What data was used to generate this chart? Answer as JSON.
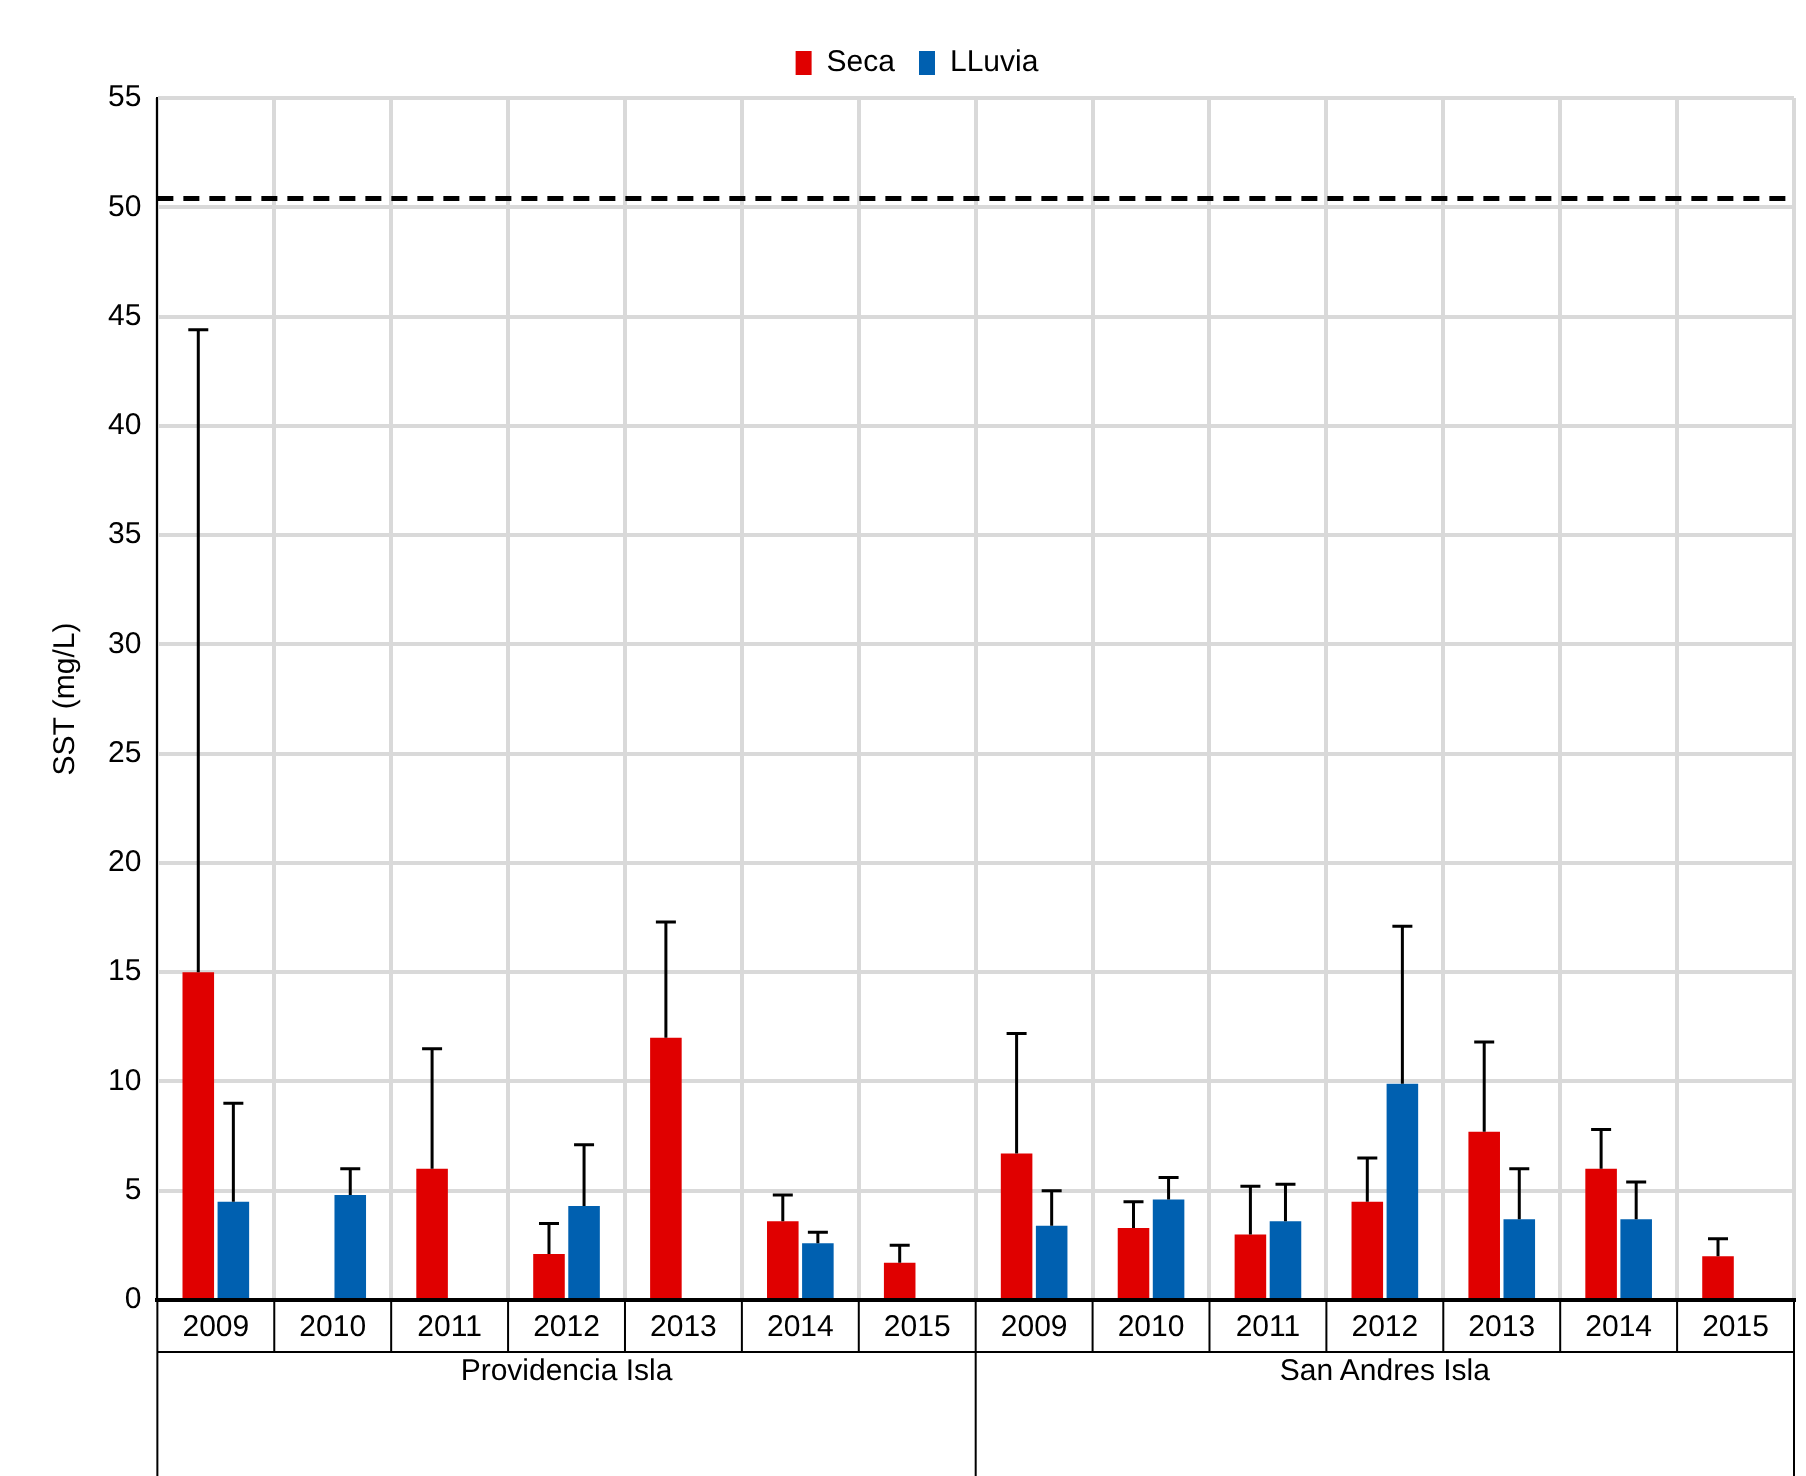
{
  "chart_data": {
    "type": "bar",
    "ylabel": "SST (mg/L)",
    "categories": [
      "2009",
      "2010",
      "2011",
      "2012",
      "2013",
      "2014",
      "2015",
      "2009",
      "2010",
      "2011",
      "2012",
      "2013",
      "2014",
      "2015"
    ],
    "annotations": [
      "Providencia Isla",
      "San Andres Isla"
    ],
    "series": [
      {
        "name": "Seca",
        "color": "#e00000",
        "values": [
          15,
          null,
          6.0,
          2.1,
          12.0,
          3.6,
          1.7,
          6.7,
          3.3,
          3.0,
          4.5,
          7.7,
          6.0,
          2.0
        ],
        "errors": [
          [
            15,
            44.4
          ],
          null,
          [
            6.0,
            11.5
          ],
          [
            2.1,
            3.5
          ],
          [
            12.0,
            17.3
          ],
          [
            3.6,
            4.8
          ],
          [
            1.7,
            2.5
          ],
          [
            6.7,
            12.2
          ],
          [
            3.3,
            4.5
          ],
          [
            3.0,
            5.2
          ],
          [
            4.5,
            6.5
          ],
          [
            7.7,
            11.8
          ],
          [
            6.0,
            7.8
          ],
          [
            2.0,
            2.8
          ]
        ]
      },
      {
        "name": "LLuvia",
        "color": "#0060b0",
        "values": [
          4.5,
          4.8,
          null,
          4.3,
          null,
          2.6,
          null,
          3.4,
          4.6,
          3.6,
          9.9,
          3.7,
          3.7,
          null
        ],
        "errors": [
          [
            4.5,
            9.0
          ],
          [
            4.8,
            6.0
          ],
          null,
          [
            4.3,
            7.1
          ],
          null,
          [
            2.6,
            3.1
          ],
          null,
          [
            3.4,
            5.0
          ],
          [
            4.6,
            5.6
          ],
          [
            3.6,
            5.3
          ],
          [
            9.9,
            17.1
          ],
          [
            3.7,
            6.0
          ],
          [
            3.7,
            5.4
          ],
          null
        ]
      }
    ],
    "ylim": [
      0,
      55
    ],
    "yticks": [
      0,
      5,
      10,
      15,
      20,
      25,
      30,
      35,
      40,
      45,
      50,
      55
    ],
    "ref_lines": [
      {
        "axis": "y",
        "value": 50.4,
        "line_style": "dashed",
        "color": "#000000"
      }
    ],
    "grid": true,
    "legend": "top"
  }
}
